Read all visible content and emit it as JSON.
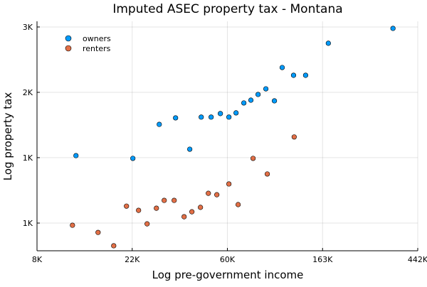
{
  "chart_data": {
    "type": "scatter",
    "title": "Imputed ASEC property tax - Montana",
    "x_label": "Log pre-government income",
    "y_label": "Log property tax",
    "xscale": "log",
    "yscale": "log",
    "grid": true,
    "legend_position": "top-left",
    "xlim": [
      8103,
      442413
    ],
    "ylim": [
      538,
      3113
    ],
    "xticks": [
      {
        "value": 8103,
        "label": "8K"
      },
      {
        "value": 22026,
        "label": "22K"
      },
      {
        "value": 59874,
        "label": "60K"
      },
      {
        "value": 162755,
        "label": "163K"
      },
      {
        "value": 442413,
        "label": "442K"
      }
    ],
    "yticks": [
      {
        "value": 665,
        "label": "1K"
      },
      {
        "value": 1097,
        "label": "1K"
      },
      {
        "value": 1808,
        "label": "2K"
      },
      {
        "value": 2981,
        "label": "3K"
      }
    ],
    "series": [
      {
        "name": "owners",
        "color": "#009afa",
        "x": [
          12200,
          22180,
          29270,
          34740,
          40330,
          45480,
          50470,
          55620,
          60840,
          65580,
          71180,
          76650,
          82650,
          89710,
          98140,
          106500,
          120000,
          136200,
          172900,
          341000
        ],
        "values": [
          1114,
          1091,
          1415,
          1487,
          1170,
          1496,
          1496,
          1537,
          1496,
          1545,
          1667,
          1703,
          1779,
          1857,
          1694,
          2186,
          2060,
          2060,
          2632,
          2949
        ]
      },
      {
        "name": "renters",
        "color": "#e26f46",
        "x": [
          11760,
          15390,
          18140,
          20740,
          23550,
          25760,
          28400,
          30830,
          34230,
          38000,
          41240,
          45120,
          49020,
          53590,
          60840,
          67040,
          78430,
          91060,
          120800
        ],
        "values": [
          654,
          619,
          559,
          757,
          733,
          661,
          745,
          791,
          791,
          698,
          725,
          750,
          835,
          826,
          897,
          766,
          1091,
          968,
          1285
        ]
      }
    ]
  }
}
